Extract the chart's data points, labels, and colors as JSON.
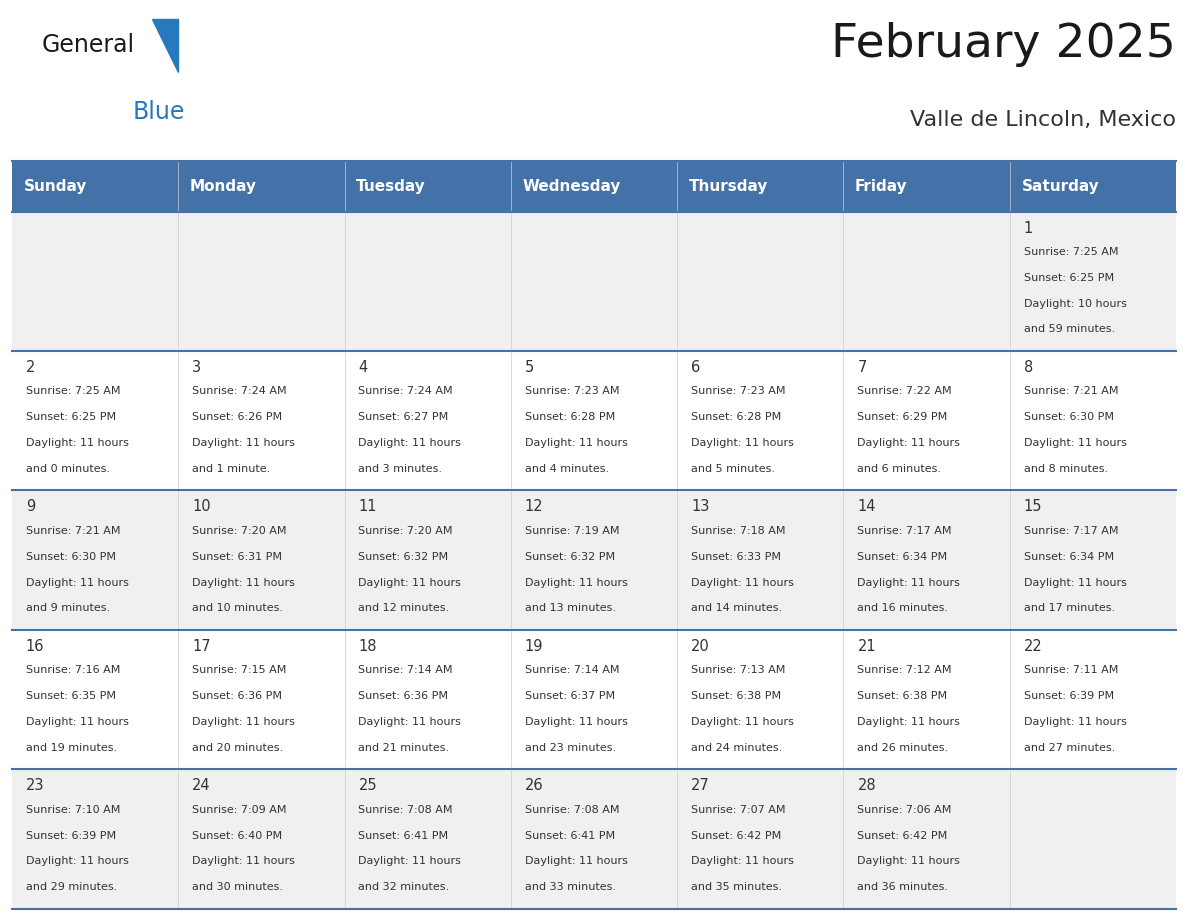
{
  "title": "February 2025",
  "subtitle": "Valle de Lincoln, Mexico",
  "header_color": "#4472A8",
  "header_text_color": "#FFFFFF",
  "days_of_week": [
    "Sunday",
    "Monday",
    "Tuesday",
    "Wednesday",
    "Thursday",
    "Friday",
    "Saturday"
  ],
  "background_color": "#FFFFFF",
  "cell_bg_even": "#F0F0F0",
  "cell_bg_odd": "#FFFFFF",
  "border_color": "#4472A8",
  "day_number_color": "#333333",
  "info_text_color": "#333333",
  "calendar_data": [
    [
      null,
      null,
      null,
      null,
      null,
      null,
      {
        "day": 1,
        "sunrise": "7:25 AM",
        "sunset": "6:25 PM",
        "daylight": "10 hours",
        "daylight2": "and 59 minutes."
      }
    ],
    [
      {
        "day": 2,
        "sunrise": "7:25 AM",
        "sunset": "6:25 PM",
        "daylight": "11 hours",
        "daylight2": "and 0 minutes."
      },
      {
        "day": 3,
        "sunrise": "7:24 AM",
        "sunset": "6:26 PM",
        "daylight": "11 hours",
        "daylight2": "and 1 minute."
      },
      {
        "day": 4,
        "sunrise": "7:24 AM",
        "sunset": "6:27 PM",
        "daylight": "11 hours",
        "daylight2": "and 3 minutes."
      },
      {
        "day": 5,
        "sunrise": "7:23 AM",
        "sunset": "6:28 PM",
        "daylight": "11 hours",
        "daylight2": "and 4 minutes."
      },
      {
        "day": 6,
        "sunrise": "7:23 AM",
        "sunset": "6:28 PM",
        "daylight": "11 hours",
        "daylight2": "and 5 minutes."
      },
      {
        "day": 7,
        "sunrise": "7:22 AM",
        "sunset": "6:29 PM",
        "daylight": "11 hours",
        "daylight2": "and 6 minutes."
      },
      {
        "day": 8,
        "sunrise": "7:21 AM",
        "sunset": "6:30 PM",
        "daylight": "11 hours",
        "daylight2": "and 8 minutes."
      }
    ],
    [
      {
        "day": 9,
        "sunrise": "7:21 AM",
        "sunset": "6:30 PM",
        "daylight": "11 hours",
        "daylight2": "and 9 minutes."
      },
      {
        "day": 10,
        "sunrise": "7:20 AM",
        "sunset": "6:31 PM",
        "daylight": "11 hours",
        "daylight2": "and 10 minutes."
      },
      {
        "day": 11,
        "sunrise": "7:20 AM",
        "sunset": "6:32 PM",
        "daylight": "11 hours",
        "daylight2": "and 12 minutes."
      },
      {
        "day": 12,
        "sunrise": "7:19 AM",
        "sunset": "6:32 PM",
        "daylight": "11 hours",
        "daylight2": "and 13 minutes."
      },
      {
        "day": 13,
        "sunrise": "7:18 AM",
        "sunset": "6:33 PM",
        "daylight": "11 hours",
        "daylight2": "and 14 minutes."
      },
      {
        "day": 14,
        "sunrise": "7:17 AM",
        "sunset": "6:34 PM",
        "daylight": "11 hours",
        "daylight2": "and 16 minutes."
      },
      {
        "day": 15,
        "sunrise": "7:17 AM",
        "sunset": "6:34 PM",
        "daylight": "11 hours",
        "daylight2": "and 17 minutes."
      }
    ],
    [
      {
        "day": 16,
        "sunrise": "7:16 AM",
        "sunset": "6:35 PM",
        "daylight": "11 hours",
        "daylight2": "and 19 minutes."
      },
      {
        "day": 17,
        "sunrise": "7:15 AM",
        "sunset": "6:36 PM",
        "daylight": "11 hours",
        "daylight2": "and 20 minutes."
      },
      {
        "day": 18,
        "sunrise": "7:14 AM",
        "sunset": "6:36 PM",
        "daylight": "11 hours",
        "daylight2": "and 21 minutes."
      },
      {
        "day": 19,
        "sunrise": "7:14 AM",
        "sunset": "6:37 PM",
        "daylight": "11 hours",
        "daylight2": "and 23 minutes."
      },
      {
        "day": 20,
        "sunrise": "7:13 AM",
        "sunset": "6:38 PM",
        "daylight": "11 hours",
        "daylight2": "and 24 minutes."
      },
      {
        "day": 21,
        "sunrise": "7:12 AM",
        "sunset": "6:38 PM",
        "daylight": "11 hours",
        "daylight2": "and 26 minutes."
      },
      {
        "day": 22,
        "sunrise": "7:11 AM",
        "sunset": "6:39 PM",
        "daylight": "11 hours",
        "daylight2": "and 27 minutes."
      }
    ],
    [
      {
        "day": 23,
        "sunrise": "7:10 AM",
        "sunset": "6:39 PM",
        "daylight": "11 hours",
        "daylight2": "and 29 minutes."
      },
      {
        "day": 24,
        "sunrise": "7:09 AM",
        "sunset": "6:40 PM",
        "daylight": "11 hours",
        "daylight2": "and 30 minutes."
      },
      {
        "day": 25,
        "sunrise": "7:08 AM",
        "sunset": "6:41 PM",
        "daylight": "11 hours",
        "daylight2": "and 32 minutes."
      },
      {
        "day": 26,
        "sunrise": "7:08 AM",
        "sunset": "6:41 PM",
        "daylight": "11 hours",
        "daylight2": "and 33 minutes."
      },
      {
        "day": 27,
        "sunrise": "7:07 AM",
        "sunset": "6:42 PM",
        "daylight": "11 hours",
        "daylight2": "and 35 minutes."
      },
      {
        "day": 28,
        "sunrise": "7:06 AM",
        "sunset": "6:42 PM",
        "daylight": "11 hours",
        "daylight2": "and 36 minutes."
      },
      null
    ]
  ],
  "logo_color_general": "#1a1a1a",
  "logo_color_blue": "#2878BE",
  "logo_triangle_color": "#2878BE",
  "title_color": "#1a1a1a",
  "subtitle_color": "#333333"
}
